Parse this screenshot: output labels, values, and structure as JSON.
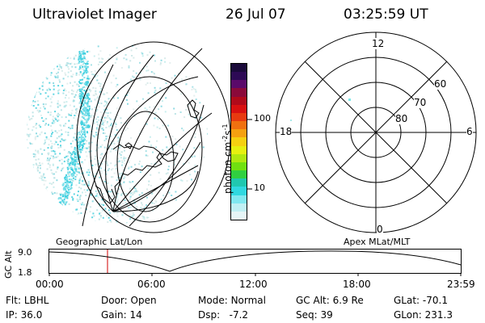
{
  "header": {
    "title": "Ultraviolet Imager",
    "date": "26 Jul 07",
    "time": "03:25:59 UT"
  },
  "colorbar": {
    "unit_prefix": "photon cm",
    "unit_exp1": "-2",
    "unit_mid": "s",
    "unit_exp2": "-1",
    "ticks": [
      "100",
      "10"
    ],
    "colors": [
      "#1a0a3a",
      "#2d0a55",
      "#5a0a6a",
      "#8a0a3a",
      "#b00a1a",
      "#d81010",
      "#e83a10",
      "#f07010",
      "#f5a010",
      "#f5d010",
      "#e6f010",
      "#b0e810",
      "#70e010",
      "#30d040",
      "#20c8b0",
      "#30d8e0",
      "#80e8f0",
      "#c0f0f4",
      "#e6f6f8"
    ]
  },
  "polar_plot": {
    "mlt_labels": {
      "top": "12",
      "left": "18",
      "right": "6",
      "bottom": "0"
    },
    "lat_labels": [
      "60",
      "70",
      "80"
    ]
  },
  "timeline": {
    "left_label": "Geographic Lat/Lon",
    "right_label": "Apex MLat/MLT",
    "axis_title": "GC Alt",
    "y_max": "9.0",
    "y_min": "1.8",
    "x_ticks": [
      "00:00",
      "06:00",
      "12:00",
      "18:00",
      "23:59"
    ],
    "marker_color": "#d00000"
  },
  "info": {
    "filter_label": "Flt:",
    "filter_value": "LBHL",
    "ip_label": "IP:",
    "ip_value": "36.0",
    "door_label": "Door:",
    "door_value": "Open",
    "gain_label": "Gain:",
    "gain_value": "14",
    "mode_label": "Mode:",
    "mode_value": "Normal",
    "dsp_label": "Dsp:",
    "dsp_value": "-7.2",
    "gcalt_label": "GC Alt:",
    "gcalt_value": "6.9 Re",
    "seq_label": "Seq:",
    "seq_value": "39",
    "glat_label": "GLat:",
    "glat_value": "-70.1",
    "glon_label": "GLon:",
    "glon_value": "231.3"
  }
}
